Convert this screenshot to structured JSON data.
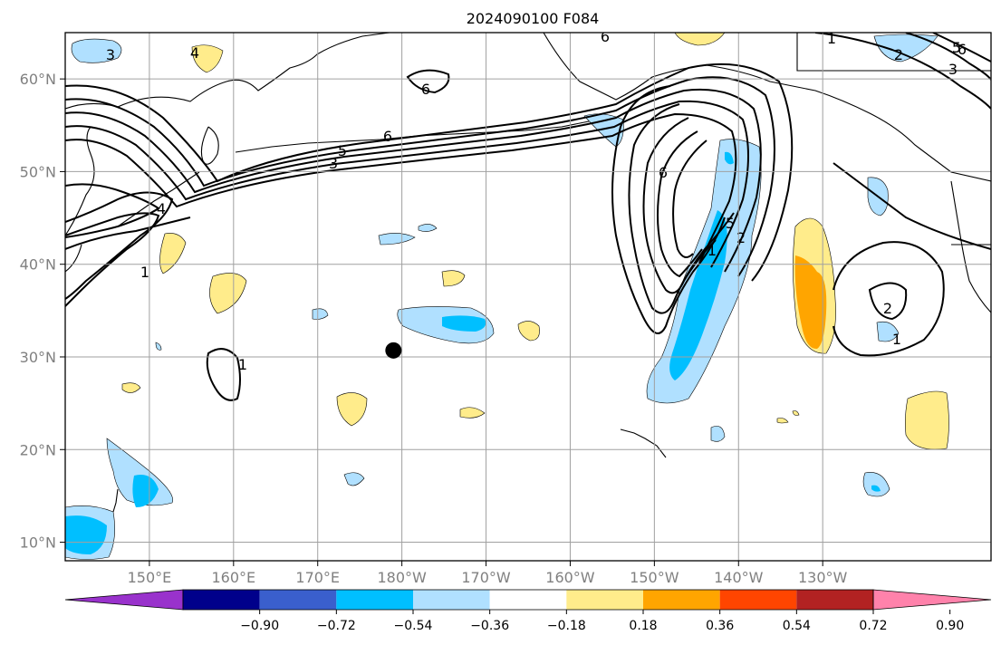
{
  "title": "2024090100 F084",
  "map": {
    "lon_range": [
      140,
      250
    ],
    "lat_range": [
      8,
      65
    ],
    "grid": true,
    "lon_ticks": [
      {
        "lon": 150,
        "label": "150°E"
      },
      {
        "lon": 160,
        "label": "160°E"
      },
      {
        "lon": 170,
        "label": "170°E"
      },
      {
        "lon": 180,
        "label": "180°W"
      },
      {
        "lon": 190,
        "label": "170°W"
      },
      {
        "lon": 200,
        "label": "160°W"
      },
      {
        "lon": 210,
        "label": "150°W"
      },
      {
        "lon": 220,
        "label": "140°W"
      },
      {
        "lon": 230,
        "label": "130°W"
      }
    ],
    "lat_ticks": [
      {
        "lat": 10,
        "label": "10°N"
      },
      {
        "lat": 20,
        "label": "20°N"
      },
      {
        "lat": 30,
        "label": "30°N"
      },
      {
        "lat": 40,
        "label": "40°N"
      },
      {
        "lat": 50,
        "label": "50°N"
      },
      {
        "lat": 60,
        "label": "60°N"
      }
    ],
    "marker": {
      "lon": 179,
      "lat": 30.7,
      "color": "#000000"
    }
  },
  "colorbar": {
    "colors": [
      "#9932cc",
      "#00008b",
      "#3a5fcd",
      "#00bfff",
      "#b0e0ff",
      "#ffffff",
      "#ffec8b",
      "#ffa500",
      "#ff4500",
      "#b22222",
      "#ff82ab"
    ],
    "tick_labels": [
      "−0.90",
      "−0.72",
      "−0.54",
      "−0.36",
      "−0.18",
      "0.18",
      "0.36",
      "0.54",
      "0.72",
      "0.90"
    ]
  },
  "contour_labels": [
    "3",
    "4",
    "6",
    "6",
    "5",
    "3",
    "6",
    "4",
    "1",
    "1",
    "2",
    "5",
    "6",
    "3",
    "2",
    "1",
    "2",
    "1",
    "6",
    "5",
    "1"
  ]
}
